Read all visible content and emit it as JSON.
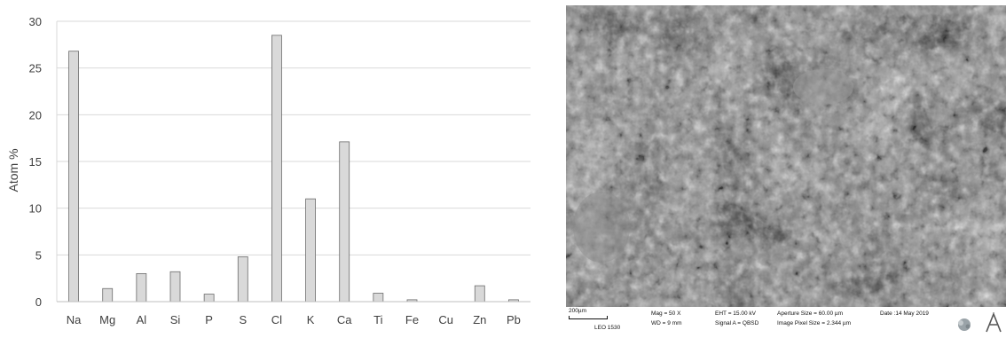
{
  "chart_data": {
    "type": "bar",
    "categories": [
      "Na",
      "Mg",
      "Al",
      "Si",
      "P",
      "S",
      "Cl",
      "K",
      "Ca",
      "Ti",
      "Fe",
      "Cu",
      "Zn",
      "Pb"
    ],
    "values": [
      26.8,
      1.4,
      3.0,
      3.2,
      0.8,
      4.8,
      28.5,
      11.0,
      17.1,
      0.9,
      0.2,
      0.0,
      1.7,
      0.2
    ],
    "yticks": [
      "0",
      "5",
      "10",
      "15",
      "20",
      "25",
      "30"
    ],
    "ylim": [
      0,
      30
    ],
    "ylabel": "Atom %",
    "xlabel": "",
    "title": "",
    "grid": true,
    "bar_color": "#d9d9d9",
    "bar_edge_color": "#6b6b6b"
  },
  "sem": {
    "scale_label": "200µm",
    "instrument": "LEO 1530",
    "mag": "Mag =    50 X",
    "wd": "WD =   9 mm",
    "eht": "EHT = 15.00 kV",
    "signal": "Signal A = QBSD",
    "aperture": "Aperture Size = 60.00 µm",
    "pixel_size": "Image Pixel Size = 2.344 µm",
    "date": "Date :14 May 2019"
  }
}
